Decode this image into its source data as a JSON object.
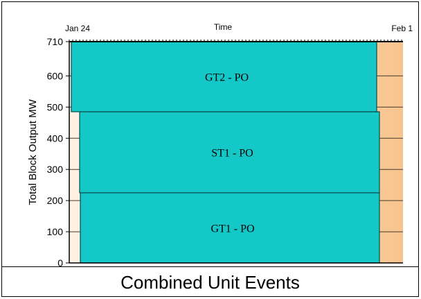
{
  "chart_data": {
    "type": "area",
    "title": "Combined Unit Events",
    "xlabel": "Time",
    "ylabel": "Total Block Output MW",
    "x_tick_labels": [
      "Jan 24",
      "Feb 1"
    ],
    "x_start_label": "Jan 24",
    "x_end_label": "Feb 1",
    "y_ticks": [
      0,
      100,
      200,
      300,
      400,
      500,
      600,
      710
    ],
    "ylim": [
      0,
      710
    ],
    "blocks": [
      {
        "name": "GT1 - PO",
        "y_from": 0,
        "y_to": 225
      },
      {
        "name": "ST1 - PO",
        "y_from": 225,
        "y_to": 485
      },
      {
        "name": "GT2 - PO",
        "y_from": 485,
        "y_to": 710
      }
    ],
    "colors": {
      "block_fill": "#14c8c8",
      "background_gradient_start": "#fff3e6",
      "background_gradient_end": "#f7c48e",
      "grid": "#4a3a2a"
    }
  }
}
